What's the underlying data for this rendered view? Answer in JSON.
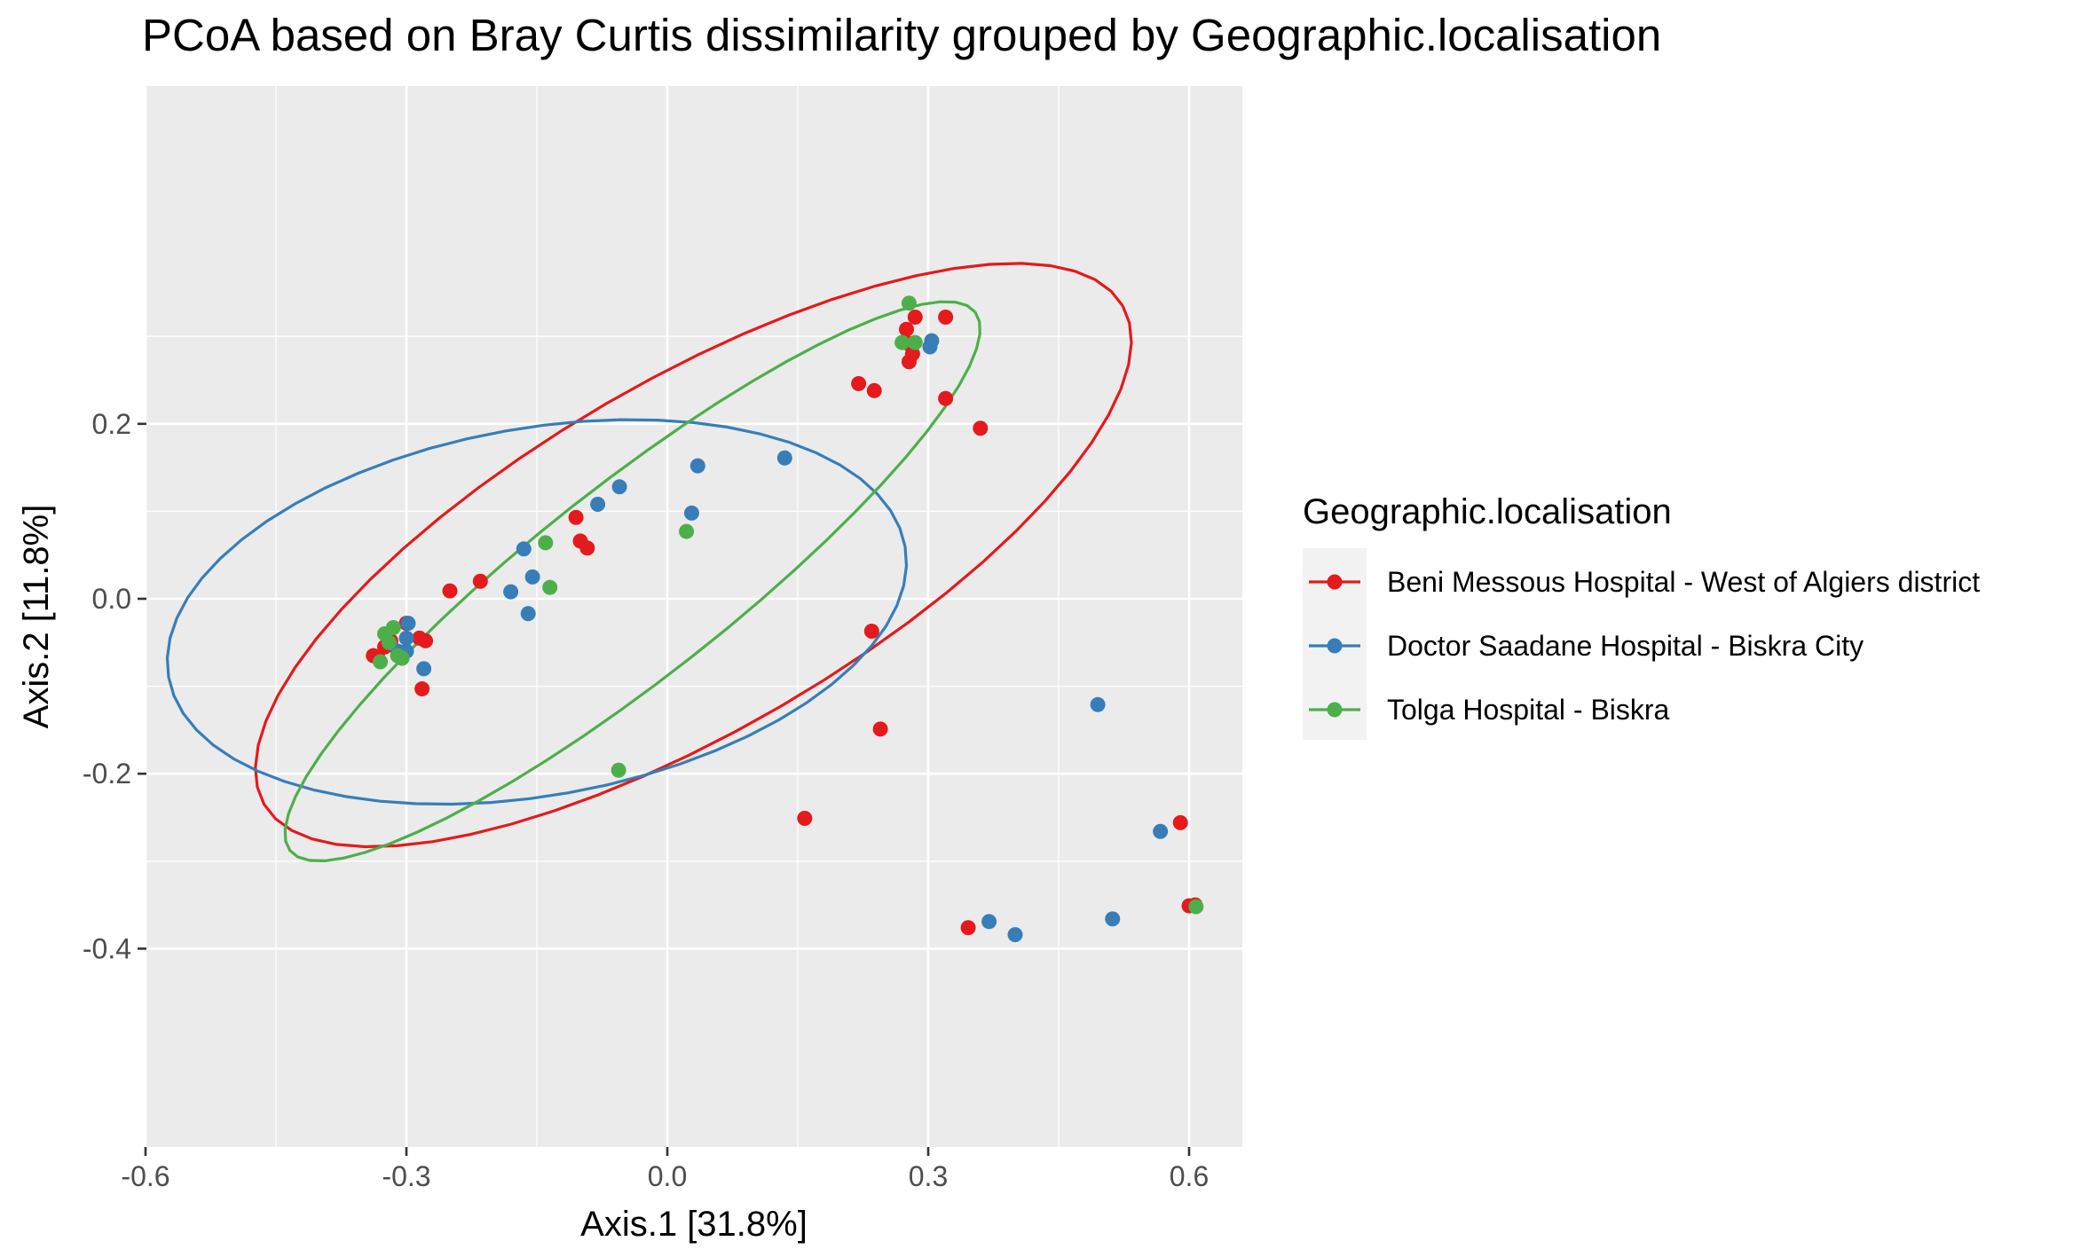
{
  "chart_data": {
    "type": "scatter",
    "title": "PCoA based on Bray Curtis dissimilarity grouped by Geographic.localisation",
    "xlabel": "Axis.1   [31.8%]",
    "ylabel": "Axis.2   [11.8%]",
    "xlim": [
      -0.6,
      0.66
    ],
    "ylim": [
      -0.42,
      0.39
    ],
    "x_ticks": [
      -0.6,
      -0.3,
      0.0,
      0.3,
      0.6
    ],
    "x_tick_labels": [
      "-0.6",
      "-0.3",
      "0.0",
      "0.3",
      "0.6"
    ],
    "y_ticks": [
      -0.4,
      -0.2,
      0.0,
      0.2
    ],
    "y_tick_labels": [
      "-0.4",
      "-0.2",
      "0.0",
      "0.2"
    ],
    "grid": true,
    "legend": {
      "title": "Geographic.localisation",
      "position": "right"
    },
    "series": [
      {
        "name": "Beni Messous Hospital - West of Algiers district",
        "color": "#e41a1c",
        "ellipse": {
          "cx": 0.03,
          "cy": 0.05,
          "rx": 0.57,
          "ry": 0.2,
          "angle": 30
        },
        "points": [
          [
            -0.338,
            -0.065
          ],
          [
            -0.333,
            -0.067
          ],
          [
            -0.325,
            -0.055
          ],
          [
            -0.318,
            -0.048
          ],
          [
            -0.3,
            -0.028
          ],
          [
            -0.31,
            -0.065
          ],
          [
            -0.285,
            -0.045
          ],
          [
            -0.278,
            -0.048
          ],
          [
            -0.282,
            -0.103
          ],
          [
            -0.25,
            0.009
          ],
          [
            -0.215,
            0.02
          ],
          [
            -0.105,
            0.093
          ],
          [
            -0.1,
            0.066
          ],
          [
            -0.092,
            0.058
          ],
          [
            0.22,
            0.246
          ],
          [
            0.238,
            0.238
          ],
          [
            0.275,
            0.308
          ],
          [
            0.285,
            0.322
          ],
          [
            0.277,
            0.292
          ],
          [
            0.282,
            0.28
          ],
          [
            0.278,
            0.271
          ],
          [
            0.32,
            0.322
          ],
          [
            0.32,
            0.229
          ],
          [
            0.36,
            0.195
          ],
          [
            0.235,
            -0.037
          ],
          [
            0.245,
            -0.149
          ],
          [
            0.158,
            -0.251
          ],
          [
            0.346,
            -0.376
          ],
          [
            0.59,
            -0.256
          ],
          [
            0.6,
            -0.351
          ],
          [
            0.607,
            -0.35
          ]
        ]
      },
      {
        "name": "Doctor Saadane Hospital - Biskra City",
        "color": "#377eb8",
        "ellipse": {
          "cx": -0.15,
          "cy": -0.015,
          "rx": 0.43,
          "ry": 0.21,
          "angle": 10
        },
        "points": [
          [
            -0.3,
            -0.045
          ],
          [
            -0.3,
            -0.06
          ],
          [
            -0.298,
            -0.028
          ],
          [
            -0.31,
            -0.06
          ],
          [
            -0.32,
            -0.05
          ],
          [
            -0.28,
            -0.08
          ],
          [
            -0.165,
            0.057
          ],
          [
            -0.155,
            0.025
          ],
          [
            -0.18,
            0.008
          ],
          [
            -0.16,
            -0.017
          ],
          [
            -0.08,
            0.108
          ],
          [
            -0.055,
            0.128
          ],
          [
            0.028,
            0.098
          ],
          [
            0.035,
            0.152
          ],
          [
            0.135,
            0.161
          ],
          [
            0.302,
            0.288
          ],
          [
            0.304,
            0.295
          ],
          [
            0.495,
            -0.121
          ],
          [
            0.567,
            -0.266
          ],
          [
            0.512,
            -0.366
          ],
          [
            0.37,
            -0.369
          ],
          [
            0.4,
            -0.384
          ]
        ]
      },
      {
        "name": "Tolga Hospital - Biskra",
        "color": "#4daf4a",
        "ellipse": {
          "cx": -0.04,
          "cy": 0.02,
          "rx": 0.5,
          "ry": 0.11,
          "angle": 38
        },
        "points": [
          [
            -0.325,
            -0.04
          ],
          [
            -0.32,
            -0.05
          ],
          [
            -0.31,
            -0.065
          ],
          [
            -0.315,
            -0.033
          ],
          [
            -0.33,
            -0.072
          ],
          [
            -0.305,
            -0.068
          ],
          [
            -0.14,
            0.064
          ],
          [
            -0.135,
            0.013
          ],
          [
            0.022,
            0.077
          ],
          [
            -0.056,
            -0.196
          ],
          [
            0.27,
            0.293
          ],
          [
            0.278,
            0.338
          ],
          [
            0.285,
            0.293
          ],
          [
            0.608,
            -0.352
          ]
        ]
      }
    ]
  }
}
